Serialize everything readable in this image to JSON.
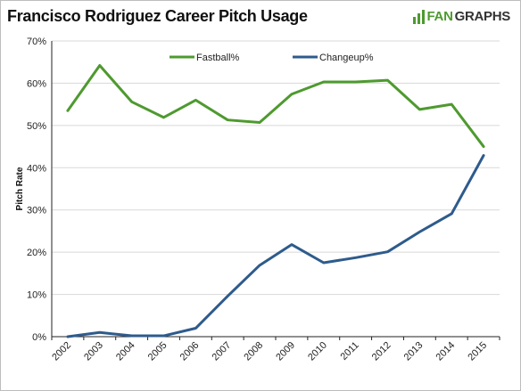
{
  "header": {
    "title": "Francisco Rodriguez Career Pitch Usage",
    "brand_fan": "FAN",
    "brand_graphs": "GRAPHS"
  },
  "chart_data": {
    "type": "line",
    "title": "Francisco Rodriguez Career Pitch Usage",
    "xlabel": "",
    "ylabel": "Pitch Rate",
    "categories": [
      "2002",
      "2003",
      "2004",
      "2005",
      "2006",
      "2007",
      "2008",
      "2009",
      "2010",
      "2011",
      "2012",
      "2013",
      "2014",
      "2015"
    ],
    "y_ticks": [
      "0%",
      "10%",
      "20%",
      "30%",
      "40%",
      "50%",
      "60%",
      "70%"
    ],
    "ylim": [
      0,
      70
    ],
    "grid": "horizontal",
    "legend_placement": "top",
    "series": [
      {
        "name": "Fastball%",
        "color": "#4e9a2f",
        "values": [
          53.5,
          64.2,
          55.6,
          51.9,
          56.0,
          51.3,
          50.7,
          57.4,
          60.3,
          60.3,
          60.7,
          53.8,
          55.0,
          45.0
        ]
      },
      {
        "name": "Changeup%",
        "color": "#2e5b8c",
        "values": [
          0.0,
          1.0,
          0.2,
          0.2,
          2.0,
          9.6,
          16.9,
          21.8,
          17.5,
          18.7,
          20.1,
          24.8,
          29.1,
          42.9
        ]
      }
    ]
  }
}
